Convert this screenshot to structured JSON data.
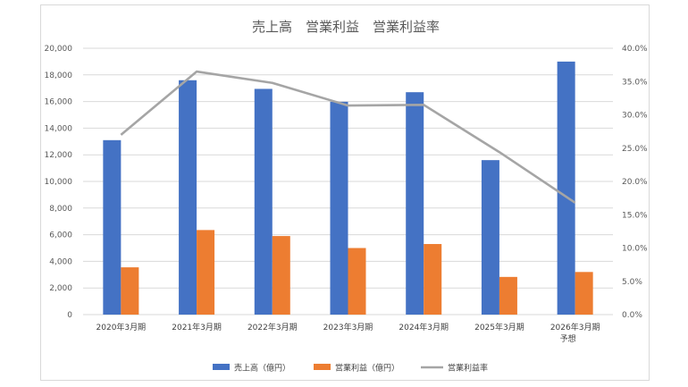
{
  "chart_data": {
    "type": "bar",
    "title": "売上高　営業利益　営業利益率",
    "categories": [
      "2020年3月期",
      "2021年3月期",
      "2022年3月期",
      "2023年3月期",
      "2024年3月期",
      "2025年3月期",
      "2026年3月期\n予想"
    ],
    "series": [
      {
        "name": "売上高（億円）",
        "type": "bar",
        "axis": "left",
        "color": "#4472c4",
        "values": [
          13100,
          17600,
          16950,
          15980,
          16700,
          11600,
          19000
        ]
      },
      {
        "name": "営業利益（億円）",
        "type": "bar",
        "axis": "left",
        "color": "#ed7d31",
        "values": [
          3550,
          6350,
          5900,
          5000,
          5300,
          2830,
          3200
        ]
      },
      {
        "name": "営業利益率",
        "type": "line",
        "axis": "right",
        "color": "#a5a5a5",
        "values": [
          0.27,
          0.365,
          0.348,
          0.314,
          0.315,
          0.244,
          0.168
        ]
      }
    ],
    "ylim_left": [
      0,
      20000
    ],
    "yticks_left": [
      "0",
      "2,000",
      "4,000",
      "6,000",
      "8,000",
      "10,000",
      "12,000",
      "14,000",
      "16,000",
      "18,000",
      "20,000"
    ],
    "ylim_right": [
      0,
      0.4
    ],
    "yticks_right": [
      "0.0%",
      "5.0%",
      "10.0%",
      "15.0%",
      "20.0%",
      "25.0%",
      "30.0%",
      "35.0%",
      "40.0%"
    ],
    "grid": true,
    "legend_position": "bottom"
  }
}
